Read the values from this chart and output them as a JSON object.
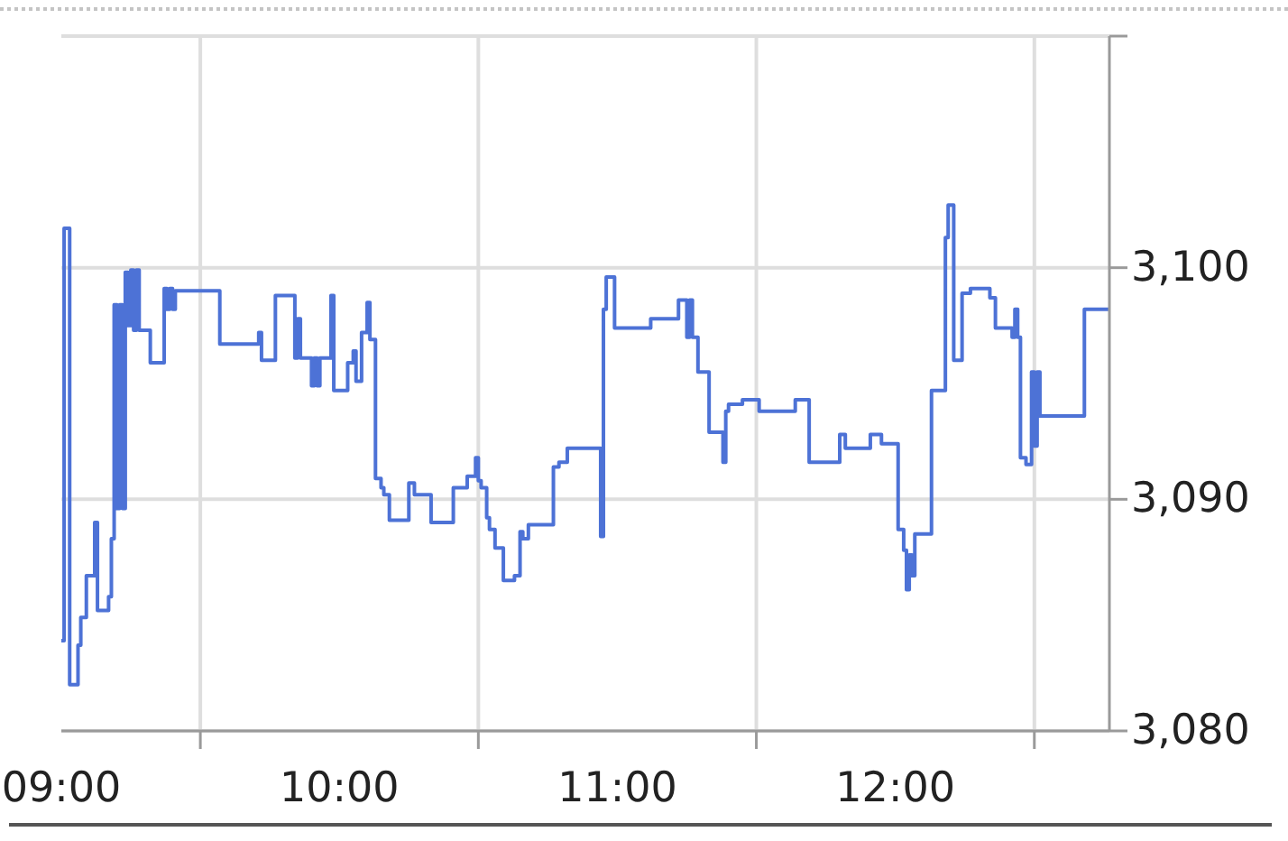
{
  "chart_data": {
    "type": "step",
    "color": "#4d72d6",
    "x": [
      9.0,
      9.01,
      9.03,
      9.06,
      9.07,
      9.09,
      9.12,
      9.13,
      9.17,
      9.18,
      9.19,
      9.2,
      9.21,
      9.22,
      9.23,
      9.24,
      9.25,
      9.26,
      9.27,
      9.28,
      9.32,
      9.37,
      9.38,
      9.39,
      9.4,
      9.41,
      9.57,
      9.71,
      9.72,
      9.77,
      9.84,
      9.85,
      9.86,
      9.9,
      9.91,
      9.92,
      9.93,
      9.97,
      9.98,
      10.03,
      10.05,
      10.06,
      10.08,
      10.1,
      10.11,
      10.13,
      10.15,
      10.16,
      10.18,
      10.25,
      10.27,
      10.33,
      10.41,
      10.46,
      10.49,
      10.5,
      10.51,
      10.53,
      10.54,
      10.56,
      10.59,
      10.63,
      10.65,
      10.66,
      10.68,
      10.77,
      10.79,
      10.82,
      10.94,
      10.95,
      10.96,
      10.99,
      11.12,
      11.22,
      11.25,
      11.26,
      11.27,
      11.29,
      11.33,
      11.38,
      11.39,
      11.4,
      11.45,
      11.51,
      11.64,
      11.69,
      11.8,
      11.82,
      11.91,
      11.95,
      12.01,
      12.03,
      12.04,
      12.05,
      12.06,
      12.07,
      12.13,
      12.18,
      12.19,
      12.21,
      12.24,
      12.27,
      12.34,
      12.36,
      12.42,
      12.43,
      12.44,
      12.45,
      12.47,
      12.49,
      12.5,
      12.51,
      12.52,
      12.68,
      12.77
    ],
    "values": [
      3083.9,
      3101.7,
      3082.0,
      3083.7,
      3084.9,
      3086.7,
      3089.0,
      3085.2,
      3085.8,
      3088.3,
      3098.4,
      3089.6,
      3098.4,
      3089.6,
      3099.8,
      3097.5,
      3099.9,
      3097.3,
      3099.9,
      3097.3,
      3095.9,
      3099.1,
      3098.2,
      3099.1,
      3098.2,
      3099.0,
      3096.7,
      3097.2,
      3096.0,
      3098.8,
      3096.1,
      3097.8,
      3096.1,
      3094.9,
      3096.1,
      3094.9,
      3096.1,
      3098.8,
      3094.7,
      3095.9,
      3096.4,
      3095.1,
      3097.2,
      3098.5,
      3096.9,
      3090.9,
      3090.5,
      3090.2,
      3089.1,
      3090.7,
      3090.2,
      3089.0,
      3090.5,
      3091.0,
      3091.8,
      3090.8,
      3090.5,
      3089.2,
      3088.7,
      3087.9,
      3086.5,
      3086.7,
      3088.6,
      3088.3,
      3088.9,
      3091.4,
      3091.6,
      3092.2,
      3088.4,
      3098.2,
      3099.6,
      3097.4,
      3097.8,
      3098.6,
      3097.0,
      3098.6,
      3097.0,
      3095.5,
      3092.9,
      3091.6,
      3093.8,
      3094.1,
      3094.3,
      3093.8,
      3094.3,
      3091.6,
      3092.8,
      3092.2,
      3092.8,
      3092.4,
      3088.7,
      3087.8,
      3086.1,
      3087.6,
      3086.7,
      3088.5,
      3094.7,
      3101.3,
      3102.7,
      3096.0,
      3098.9,
      3099.1,
      3098.7,
      3097.4,
      3097.0,
      3098.2,
      3097.0,
      3091.8,
      3091.5,
      3095.5,
      3092.3,
      3095.5,
      3093.6,
      3098.2,
      3098.2
    ],
    "xlim": [
      9,
      12.77
    ],
    "xticks": [
      {
        "value": 9,
        "label": "09:00"
      },
      {
        "value": 9.5,
        "label": null
      },
      {
        "value": 10,
        "label": "10:00"
      },
      {
        "value": 10.5,
        "label": null
      },
      {
        "value": 11,
        "label": "11:00"
      },
      {
        "value": 11.5,
        "label": null
      },
      {
        "value": 12,
        "label": "12:00"
      },
      {
        "value": 12.5,
        "label": null
      }
    ],
    "ylim": [
      3080,
      3110
    ],
    "yticks": [
      {
        "value": 3080,
        "label": "3,080"
      },
      {
        "value": 3090,
        "label": "3,090"
      },
      {
        "value": 3100,
        "label": "3,100"
      },
      {
        "value": 3110,
        "label": null
      }
    ],
    "grid": true
  }
}
